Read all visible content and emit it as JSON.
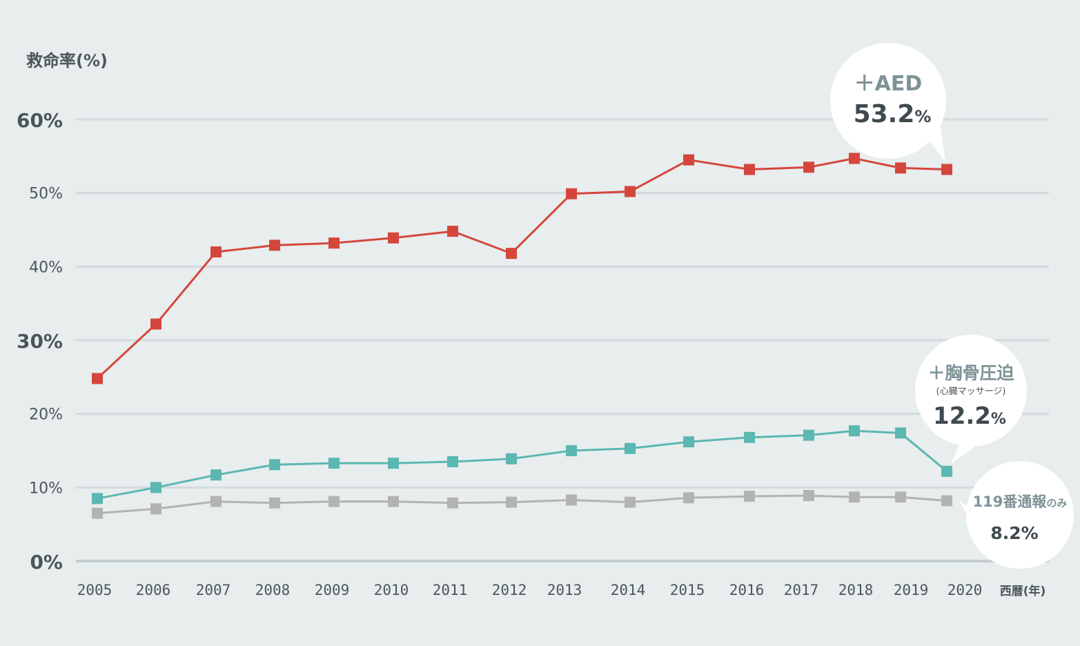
{
  "chart_data": {
    "type": "line",
    "ylabel": "救命率(%)",
    "xlabel": "西暦(年)",
    "x": [
      "2005",
      "2006",
      "2007",
      "2008",
      "2009",
      "2010",
      "2011",
      "2012",
      "2013",
      "2014",
      "2015",
      "2016",
      "2017",
      "2018",
      "2019",
      "2020"
    ],
    "y_ticks": [
      "0%",
      "10%",
      "20%",
      "30%",
      "40%",
      "50%",
      "60%"
    ],
    "ylim": [
      0,
      60
    ],
    "grid": true,
    "series": [
      {
        "id": "aed",
        "color": "#d4463c",
        "values": [
          24.8,
          32.2,
          42.0,
          42.9,
          43.2,
          43.9,
          44.8,
          41.8,
          49.9,
          50.2,
          54.5,
          53.2,
          53.5,
          54.7,
          53.4,
          53.2
        ],
        "callout": {
          "title": "＋AED",
          "value": "53.2",
          "unit": "%"
        }
      },
      {
        "id": "chest-compression",
        "color": "#5bb7b1",
        "values": [
          8.5,
          10.0,
          11.7,
          13.1,
          13.3,
          13.3,
          13.5,
          13.9,
          15.0,
          15.3,
          16.2,
          16.8,
          17.1,
          17.7,
          17.4,
          12.2
        ],
        "callout": {
          "title": "＋胸骨圧迫",
          "subtitle": "(心臓マッサージ)",
          "value": "12.2",
          "unit": "%"
        }
      },
      {
        "id": "call-119-only",
        "color": "#b3b3b3",
        "values": [
          6.5,
          7.1,
          8.1,
          7.9,
          8.1,
          8.1,
          7.9,
          8.0,
          8.3,
          8.0,
          8.6,
          8.8,
          8.9,
          8.7,
          8.7,
          8.2
        ],
        "callout": {
          "title": "119番通報",
          "title_suffix": "のみ",
          "value": "8.2",
          "unit": "%"
        }
      }
    ]
  }
}
